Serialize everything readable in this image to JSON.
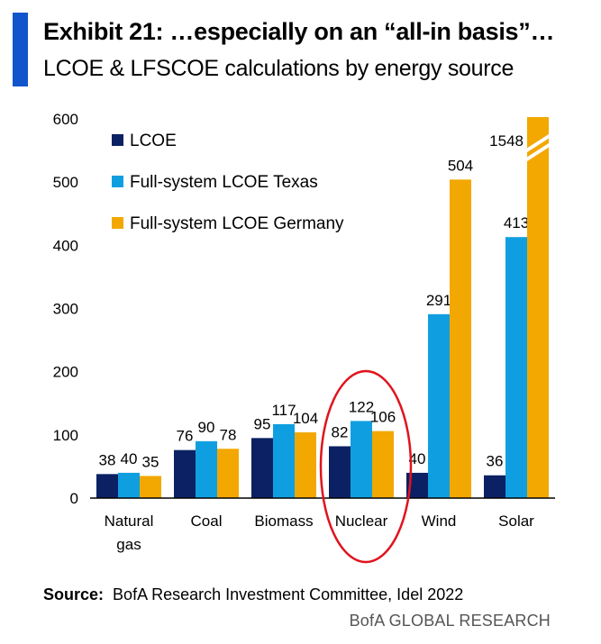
{
  "header": {
    "title": "Exhibit 21: …especially on an “all-in basis”…",
    "subtitle": "LCOE & LFSCOE calculations by energy source",
    "accent_color": "#1155CC"
  },
  "footer": {
    "source_label": "Source:",
    "source_text": "BofA Research Investment Committee, Idel 2022",
    "brand": "BofA GLOBAL RESEARCH"
  },
  "chart_data": {
    "type": "bar",
    "categories": [
      [
        "Natural",
        "gas"
      ],
      [
        "Coal"
      ],
      [
        "Biomass"
      ],
      [
        "Nuclear"
      ],
      [
        "Wind"
      ],
      [
        "Solar"
      ]
    ],
    "series": [
      {
        "name": "LCOE",
        "color": "#0B2163",
        "values": [
          38,
          76,
          95,
          82,
          40,
          36
        ]
      },
      {
        "name": "Full-system LCOE Texas",
        "color": "#0F9FE0",
        "values": [
          40,
          90,
          117,
          122,
          291,
          413
        ]
      },
      {
        "name": "Full-system LCOE Germany",
        "color": "#F2A800",
        "values": [
          35,
          78,
          104,
          106,
          504,
          1548
        ]
      }
    ],
    "ylim": [
      0,
      600
    ],
    "yticks": [
      "0",
      "100",
      "200",
      "300",
      "400",
      "500",
      "600"
    ],
    "legend_position": "top-left",
    "grid": false,
    "axis_break": {
      "category": "Solar",
      "series": "Full-system LCOE Germany"
    },
    "annotation": {
      "type": "ellipse",
      "category": "Nuclear",
      "color": "#E0141E"
    }
  }
}
